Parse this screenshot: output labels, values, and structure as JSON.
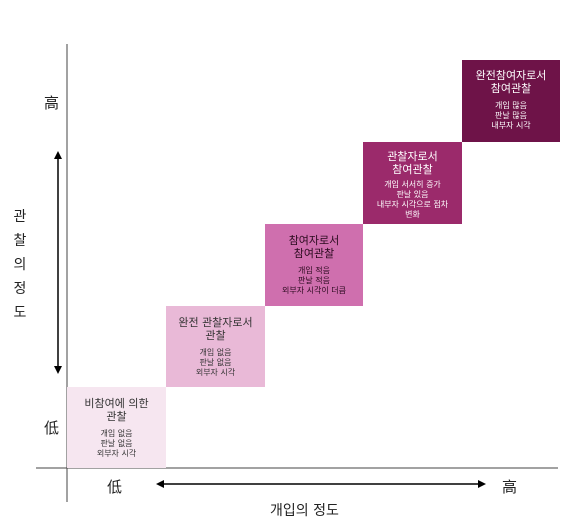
{
  "axes": {
    "y_label_chars": [
      "관",
      "찰",
      "의",
      "정",
      "도"
    ],
    "y_high": "高",
    "y_low": "低",
    "x_low": "低",
    "x_high": "高",
    "x_label": "개입의 정도"
  },
  "levels": [
    {
      "title_lines": [
        "비참여에 의한",
        "관찰"
      ],
      "desc_lines": [
        "개입 없음",
        "판날 없음",
        "외부자 시각"
      ],
      "color": "#f6e6f0",
      "text_color": "#333333"
    },
    {
      "title_lines": [
        "완전 관찰자로서",
        "관찰"
      ],
      "desc_lines": [
        "개입 없음",
        "판날 없음",
        "외부자 시각"
      ],
      "color": "#e9b9d7",
      "text_color": "#333333"
    },
    {
      "title_lines": [
        "참여자로서",
        "참여관찰"
      ],
      "desc_lines": [
        "개입 적음",
        "판날 적음",
        "외부자 시각이 더큼"
      ],
      "color": "#cf6fae",
      "text_color": "#2a0a1e"
    },
    {
      "title_lines": [
        "관찰자로서",
        "참여관찰"
      ],
      "desc_lines": [
        "개입 서서히 증가",
        "판날 있음",
        "내부자 시각으로 점차",
        "변화"
      ],
      "color": "#9b2a6b",
      "text_color": "#ffffff"
    },
    {
      "title_lines": [
        "완전참여자로서",
        "참여관찰"
      ],
      "desc_lines": [
        "개입 많음",
        "판날 많음",
        "내부자 시각"
      ],
      "color": "#6e1348",
      "text_color": "#ffffff"
    }
  ]
}
